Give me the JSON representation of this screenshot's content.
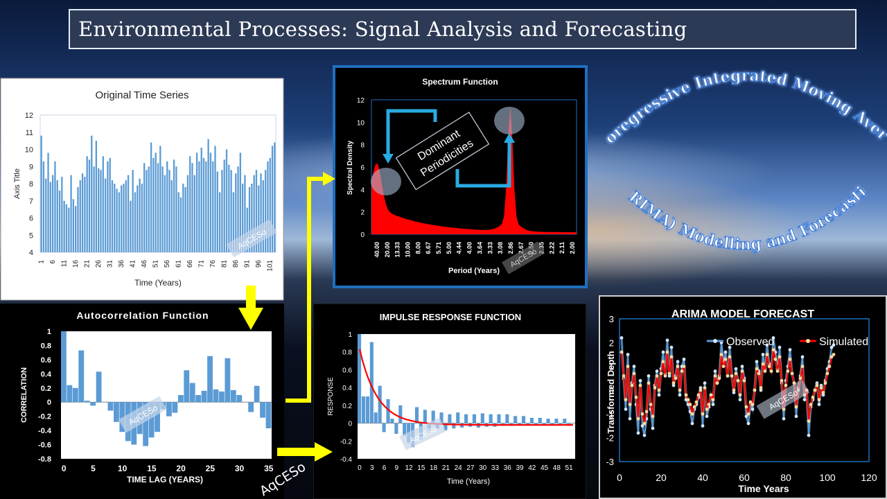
{
  "banner": {
    "title": "Environmental Processes: Signal Analysis and Forecasting"
  },
  "arima_text": {
    "line1": "Autoregressive Integrated Moving Average",
    "line2": "(ARIMA) Modelling and Forecasting"
  },
  "watermark": "AqCESo",
  "colors": {
    "bar_blue": "#5b9bd5",
    "red": "#ff0000",
    "arrow_yellow": "#ffff00",
    "arrow_blue": "#29abe2"
  },
  "chart_data": [
    {
      "type": "bar",
      "title": "Original Time Series",
      "xlabel": "Time (Years)",
      "ylabel": "Axis Title",
      "ylim": [
        4,
        12
      ],
      "yticks": [
        4,
        5,
        6,
        7,
        8,
        9,
        10,
        11,
        12
      ],
      "xticks": [
        "1",
        "6",
        "11",
        "16",
        "21",
        "26",
        "31",
        "36",
        "41",
        "46",
        "51",
        "56",
        "61",
        "66",
        "71",
        "76",
        "81",
        "86",
        "91",
        "96",
        "101"
      ],
      "values": [
        10.8,
        9.3,
        8.3,
        9.8,
        8.1,
        8.5,
        9.3,
        8.2,
        7.6,
        8.4,
        7,
        6.8,
        6.6,
        8.5,
        7.1,
        6.7,
        7.8,
        8.2,
        8.6,
        8.4,
        9.6,
        9.4,
        10.8,
        9.0,
        10.5,
        8.9,
        8.8,
        9.6,
        8.3,
        9.3,
        9.5,
        8.2,
        8.0,
        7.7,
        7.5,
        7.9,
        8.0,
        8.2,
        8.5,
        7.0,
        8.8,
        7.5,
        7.9,
        8.3,
        8.0,
        9.2,
        8.8,
        9.0,
        10.4,
        9.5,
        9.8,
        9.2,
        10.2,
        9.0,
        8.5,
        9.3,
        8.8,
        8.2,
        9.4,
        9.0,
        7.5,
        7.2,
        8.0,
        7.8,
        8.5,
        9.6,
        9.2,
        8.5,
        9.8,
        9.3,
        10.1,
        9.5,
        9.3,
        10.6,
        9.8,
        9.3,
        10.2,
        8.7,
        7.5,
        8.8,
        9.4,
        10.0,
        9.1,
        8.8,
        7.5,
        8.6,
        9.0,
        9.8,
        8.0,
        8.5,
        6.6,
        7.8,
        8.0,
        8.5,
        8.8,
        7.9,
        8.6,
        8.2,
        8.8,
        9.3,
        9.5,
        10.2,
        10.4
      ],
      "watermark": "AqCESo"
    },
    {
      "type": "area",
      "title": "Spectrum Function",
      "xlabel": "Period (Years)",
      "ylabel": "Spectral Density",
      "ylim": [
        0,
        12
      ],
      "yticks": [
        0,
        2,
        4,
        6,
        8,
        10,
        12
      ],
      "xticks": [
        "40.00",
        "20.00",
        "13.33",
        "10.00",
        "8.00",
        "6.67",
        "5.71",
        "5.00",
        "4.44",
        "4.00",
        "3.64",
        "3.33",
        "3.08",
        "2.86",
        "2.67",
        "2.50",
        "2.35",
        "2.22",
        "2.11",
        "2.00"
      ],
      "peaks": [
        {
          "period": 20.0,
          "density": 4.6
        },
        {
          "period": 2.86,
          "density": 10.2
        }
      ],
      "annotation": {
        "text_line1": "Dominant",
        "text_line2": "Periodicities"
      },
      "watermark": "AqCESo"
    },
    {
      "type": "bar",
      "title": "Autocorrelation Function",
      "xlabel": "TIME LAG (YEARS)",
      "ylabel": "CORRELATION",
      "ylim": [
        -0.8,
        1
      ],
      "yticks": [
        "1",
        "0.8",
        "0.6",
        "0.4",
        "0.2",
        "0",
        "-0.2",
        "-0.4",
        "-0.6",
        "-0.8"
      ],
      "xticks": [
        "0",
        "5",
        "10",
        "15",
        "20",
        "25",
        "30",
        "35"
      ],
      "values": [
        1.0,
        0.24,
        0.2,
        0.73,
        0.02,
        -0.05,
        0.43,
        0.0,
        -0.12,
        -0.28,
        -0.42,
        -0.55,
        -0.6,
        -0.45,
        -0.62,
        -0.5,
        -0.42,
        -0.1,
        -0.2,
        -0.15,
        0.1,
        0.45,
        0.27,
        0.1,
        0.16,
        0.65,
        0.18,
        0.15,
        0.62,
        0.17,
        0.1,
        0.0,
        -0.14,
        0.23,
        -0.22,
        -0.37
      ],
      "watermark": "AqCESo"
    },
    {
      "type": "bar",
      "title": "IMPULSE RESPONSE FUNCTION",
      "xlabel": "Time (Years)",
      "ylabel": "RESPONSE",
      "ylim": [
        -0.4,
        1
      ],
      "yticks": [
        "1",
        "0.8",
        "0.6",
        "0.4",
        "0.2",
        "0",
        "-0.2",
        "-0.4"
      ],
      "xticks": [
        "0",
        "3",
        "6",
        "9",
        "12",
        "15",
        "18",
        "21",
        "24",
        "27",
        "30",
        "33",
        "36",
        "39",
        "42",
        "45",
        "48",
        "51"
      ],
      "bar_values": [
        1.0,
        0.3,
        0.3,
        0.91,
        0.12,
        0.42,
        -0.1,
        0.27,
        0.05,
        -0.12,
        0.2,
        -0.14,
        -0.22,
        -0.27,
        0.18,
        -0.18,
        0.15,
        -0.1,
        0.14,
        -0.06,
        0.12,
        -0.08,
        0.1,
        -0.06,
        0.12,
        -0.05,
        0.1,
        -0.04,
        0.1,
        -0.05,
        0.11,
        -0.04,
        0.1,
        -0.04,
        0.1,
        -0.03,
        0.1,
        -0.03,
        0.08,
        -0.02,
        0.08,
        -0.02,
        0.06,
        -0.02,
        0.06,
        -0.02,
        0.05,
        -0.02,
        0.05,
        -0.01,
        0.05,
        -0.01
      ],
      "fitted_curve": {
        "a": 0.85,
        "decay": 0.23
      },
      "watermark": "AqCESo"
    },
    {
      "type": "line",
      "title": "ARIMA MODEL FORECAST",
      "xlabel": "Time Years",
      "ylabel": "Transformed Depth",
      "xlim": [
        0,
        120
      ],
      "ylim": [
        -3,
        3
      ],
      "xticks": [
        "0",
        "20",
        "40",
        "60",
        "80",
        "100",
        "120"
      ],
      "yticks": [
        "3",
        "2",
        "1",
        "0",
        "-1",
        "-2",
        "-3"
      ],
      "legend_position": "top",
      "series": [
        {
          "name": "Observed",
          "values": [
            2.2,
            0.5,
            -0.8,
            1.5,
            -1.2,
            0.3,
            1.0,
            -0.6,
            -1.8,
            0.4,
            -1.5,
            -1.9,
            -1.2,
            0.6,
            -0.8,
            -1.6,
            0.2,
            0.8,
            -0.2,
            0.9,
            1.6,
            0.7,
            2.1,
            0.6,
            1.8,
            0.2,
            0.6,
            1.2,
            -0.2,
            1.0,
            1.3,
            -0.4,
            -0.6,
            -0.9,
            -1.4,
            -0.8,
            -0.6,
            -0.3,
            0.1,
            -1.5,
            0.3,
            -1.1,
            -0.7,
            -0.2,
            -0.6,
            0.8,
            0.3,
            0.6,
            2.0,
            1.2,
            1.6,
            0.6,
            1.8,
            0.6,
            -0.1,
            0.9,
            0.4,
            -0.4,
            1.0,
            0.5,
            -1.1,
            -1.4,
            -0.6,
            -0.8,
            0.0,
            1.2,
            0.8,
            0.0,
            1.5,
            0.9,
            1.9,
            1.1,
            0.8,
            2.2,
            1.6,
            0.9,
            1.8,
            0.3,
            -1.2,
            0.4,
            1.0,
            1.7,
            0.7,
            0.3,
            -1.1,
            0.1,
            0.6,
            1.4,
            -0.4,
            0.0,
            -1.9,
            -0.7,
            -0.4,
            0.0,
            0.3,
            -0.6,
            0.2,
            -0.2,
            0.4,
            0.9,
            1.2,
            1.8,
            1.9
          ]
        },
        {
          "name": "Simulated",
          "values": [
            1.6,
            0.6,
            -0.4,
            1.0,
            -0.6,
            0.2,
            0.7,
            -0.3,
            -1.2,
            0.2,
            -1.0,
            -1.4,
            -0.9,
            0.3,
            -0.6,
            -1.1,
            0.1,
            0.6,
            0.0,
            0.7,
            1.2,
            0.6,
            1.6,
            0.7,
            1.4,
            0.3,
            0.5,
            1.0,
            0.0,
            0.8,
            1.0,
            -0.2,
            -0.4,
            -0.6,
            -1.0,
            -0.7,
            -0.5,
            -0.2,
            0.0,
            -1.0,
            0.1,
            -0.8,
            -0.6,
            -0.2,
            -0.4,
            0.6,
            0.3,
            0.5,
            1.5,
            1.0,
            1.3,
            0.6,
            1.4,
            0.6,
            0.0,
            0.7,
            0.4,
            -0.2,
            0.8,
            0.4,
            -0.7,
            -1.0,
            -0.5,
            -0.6,
            0.0,
            0.9,
            0.7,
            0.1,
            1.1,
            0.8,
            1.5,
            1.0,
            0.8,
            1.7,
            1.3,
            0.8,
            1.4,
            0.4,
            -0.8,
            0.2,
            0.8,
            1.3,
            0.7,
            0.3,
            -0.7,
            0.0,
            0.5,
            1.0,
            -0.2,
            0.0,
            -1.3,
            -0.6,
            -0.3,
            0.0,
            0.2,
            -0.4,
            0.1,
            -0.1,
            0.3,
            0.7,
            1.0,
            1.4,
            1.5
          ]
        }
      ],
      "watermark": "AqCESo"
    }
  ]
}
